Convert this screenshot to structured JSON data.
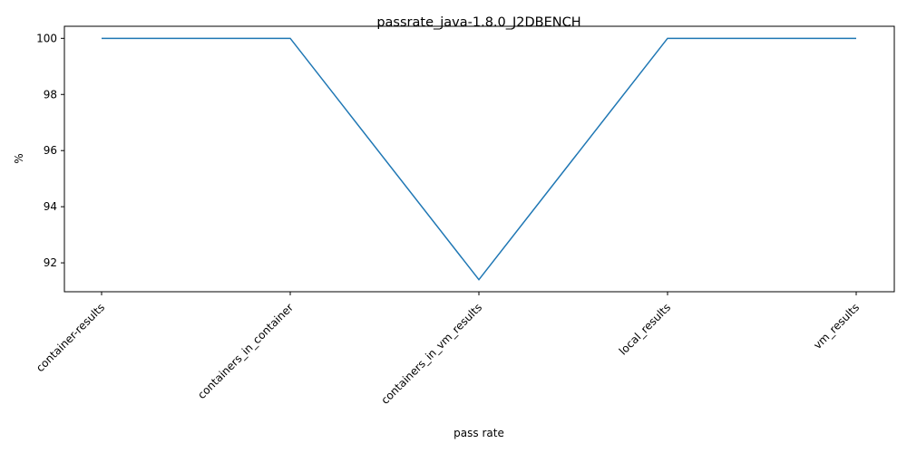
{
  "chart_data": {
    "type": "line",
    "title": "passrate_java-1.8.0_J2DBENCH",
    "xlabel": "pass rate",
    "ylabel": "%",
    "categories": [
      "container-results",
      "containers_in_container",
      "containers_in_vm_results",
      "local_results",
      "vm_results"
    ],
    "series": [
      {
        "values": [
          100,
          100,
          91.4,
          100,
          100
        ],
        "color": "#1f77b4"
      }
    ],
    "ylim": [
      90.97,
      100.43
    ],
    "yticks": [
      92,
      94,
      96,
      98,
      100
    ],
    "grid": false,
    "legend": "none"
  }
}
